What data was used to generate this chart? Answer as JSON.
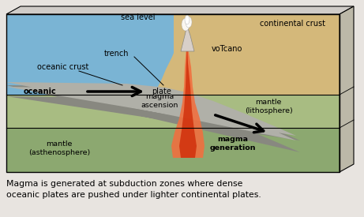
{
  "caption_line1": "Magma is generated at subduction zones where dense",
  "caption_line2": "oceanic plates are pushed under lighter continental plates.",
  "labels": {
    "sea_level": "sea level",
    "continental_crust": "continental crust",
    "oceanic_crust": "oceanic crust",
    "trench": "trench",
    "volcano": "voTcano",
    "oceanic": "oceanic",
    "plate": "plate",
    "mantle_litho": "mantle\n(lithosphere)",
    "mantle_asthen": "mantle\n(asthenosphere)",
    "magma_ascension": "magma\nascension",
    "magma_generation": "magma\ngeneration"
  },
  "colors": {
    "ocean_water": "#7ab4d4",
    "oceanic_plate_dark": "#888880",
    "oceanic_plate_light": "#aaaaaa",
    "continental_crust": "#d4b87a",
    "mantle_litho": "#a8bc82",
    "mantle_asthen": "#8ca870",
    "magma_orange": "#f07040",
    "magma_red": "#cc2200",
    "background": "#e8e4e0",
    "black": "#000000",
    "white": "#ffffff",
    "3d_top": "#d0ccc8",
    "3d_side": "#bcb8a8"
  }
}
